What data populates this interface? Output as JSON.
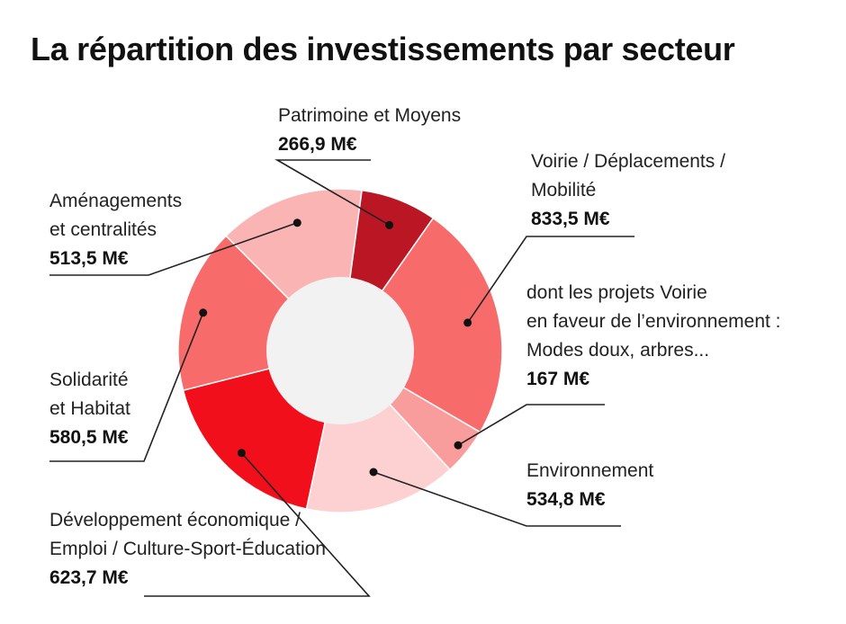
{
  "title": "La répartition des investissements par secteur",
  "chart_data": {
    "type": "pie",
    "variant": "donut",
    "title": "La répartition des investissements par secteur",
    "slices": [
      {
        "label_lines": [
          "Voirie / Déplacements /",
          "Mobilité"
        ],
        "value": 833.5,
        "value_label": "833,5 M€",
        "color": "#f86b6b"
      },
      {
        "label_lines": [
          "dont les projets Voirie",
          "en faveur de l’environnement :",
          "Modes doux, arbres..."
        ],
        "value": 167,
        "value_label": "167 M€",
        "color": "#f99c9c"
      },
      {
        "label_lines": [
          "Environnement"
        ],
        "value": 534.8,
        "value_label": "534,8 M€",
        "color": "#fdd1d1"
      },
      {
        "label_lines": [
          "Développement économique /",
          "Emploi / Culture-Sport-Éducation"
        ],
        "value": 623.7,
        "value_label": "623,7 M€",
        "color": "#f20f1c"
      },
      {
        "label_lines": [
          "Solidarité",
          "et Habitat"
        ],
        "value": 580.5,
        "value_label": "580,5 M€",
        "color": "#f86b6b"
      },
      {
        "label_lines": [
          "Aménagements",
          "et centralités"
        ],
        "value": 513.5,
        "value_label": "513,5 M€",
        "color": "#fbb4b4"
      },
      {
        "label_lines": [
          "Patrimoine et Moyens"
        ],
        "value": 266.9,
        "value_label": "266,9 M€",
        "color": "#bb1623"
      }
    ],
    "center_color": "#f2f2f2",
    "separator_color": "#ffffff",
    "leader_line_color": "#222222"
  }
}
